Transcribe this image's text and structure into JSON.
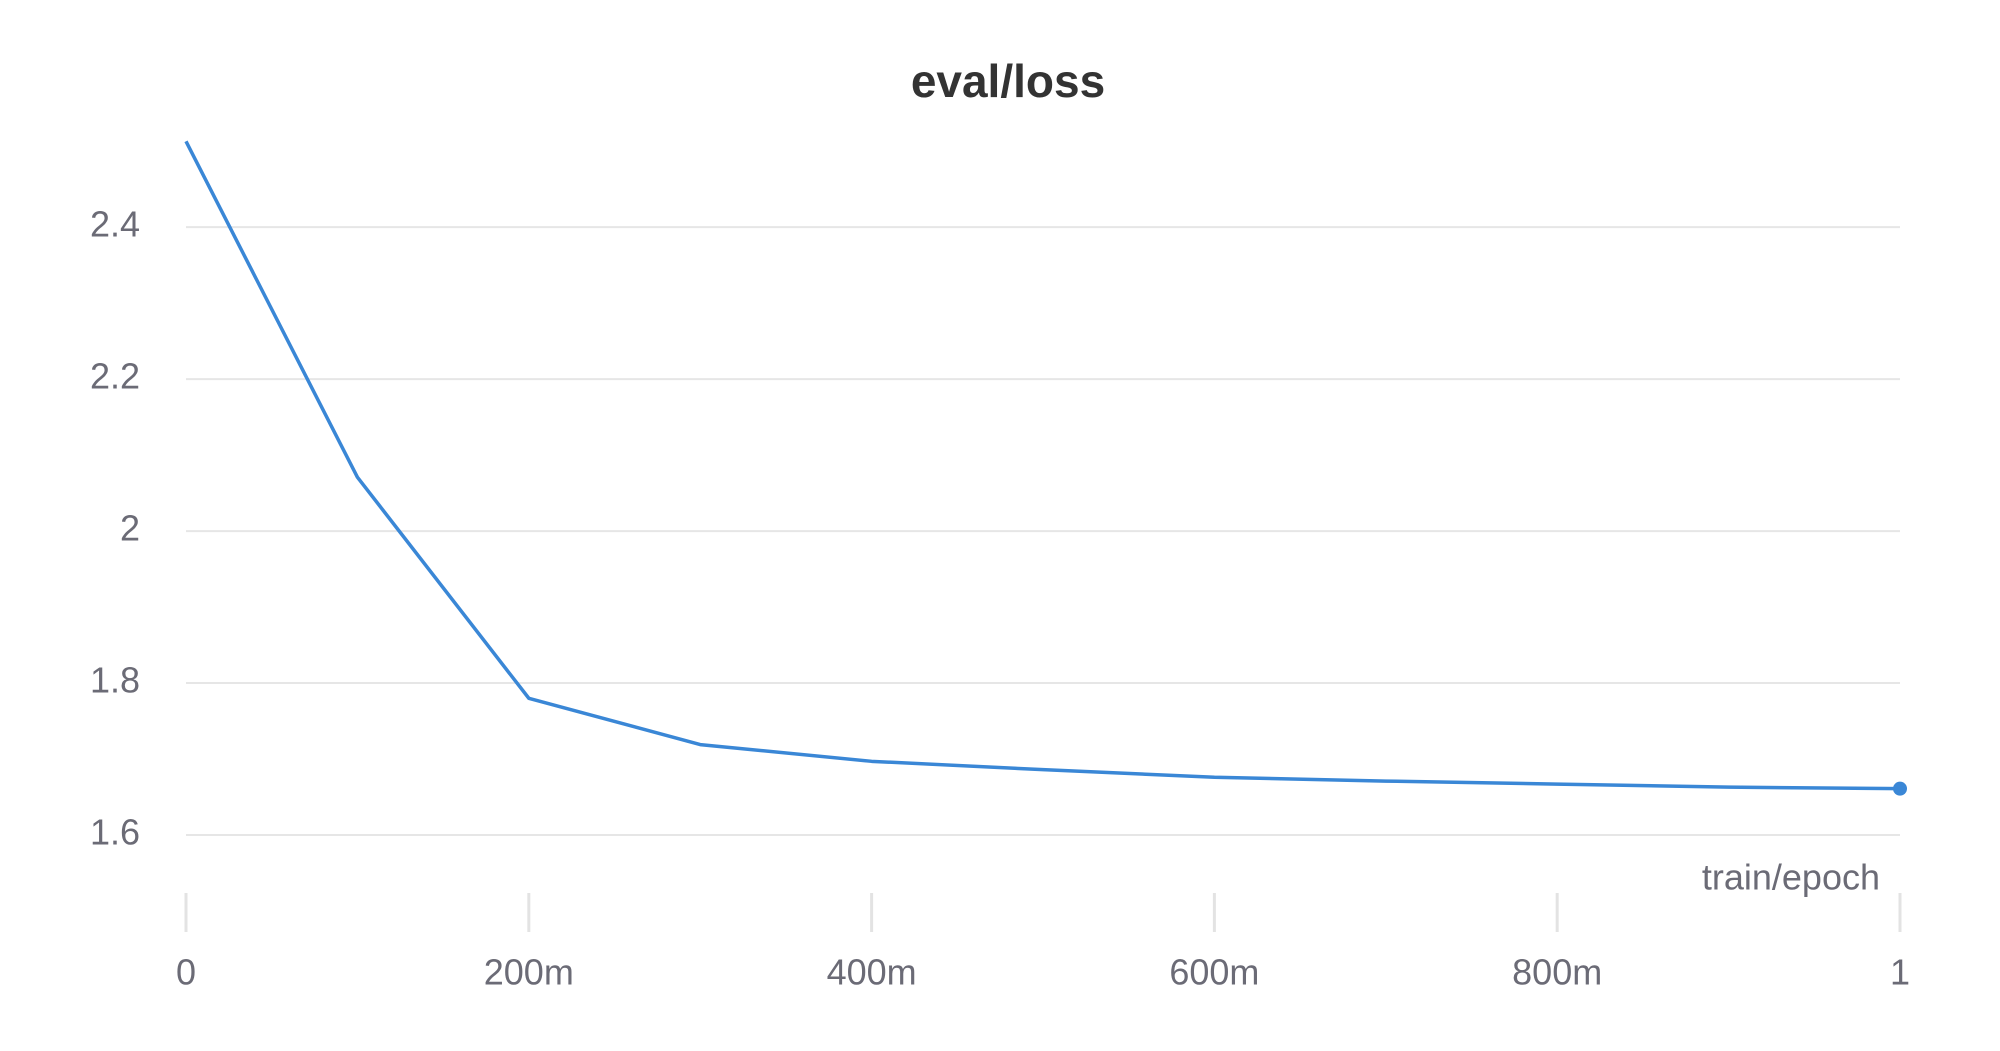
{
  "chart_data": {
    "type": "line",
    "title": "eval/loss",
    "x_label": "train/epoch",
    "x": [
      0,
      0.1,
      0.2,
      0.3,
      0.4,
      0.5,
      0.6,
      0.7,
      0.8,
      0.9,
      1
    ],
    "series": [
      {
        "name": "eval/loss",
        "color": "#3a87d6",
        "values": [
          2.513,
          2.071,
          1.78,
          1.719,
          1.697,
          1.686,
          1.676,
          1.671,
          1.667,
          1.663,
          1.661
        ]
      }
    ],
    "xlim": [
      0,
      1
    ],
    "xticks": [
      0,
      {
        "value": 0.2,
        "label": "200m"
      },
      {
        "value": 0.4,
        "label": "400m"
      },
      {
        "value": 0.6,
        "label": "600m"
      },
      {
        "value": 0.8,
        "label": "800m"
      },
      1
    ],
    "ylim": [
      1.5,
      2.52
    ],
    "yticks": [
      1.6,
      1.8,
      2,
      2.2,
      2.4
    ],
    "grid": true
  }
}
